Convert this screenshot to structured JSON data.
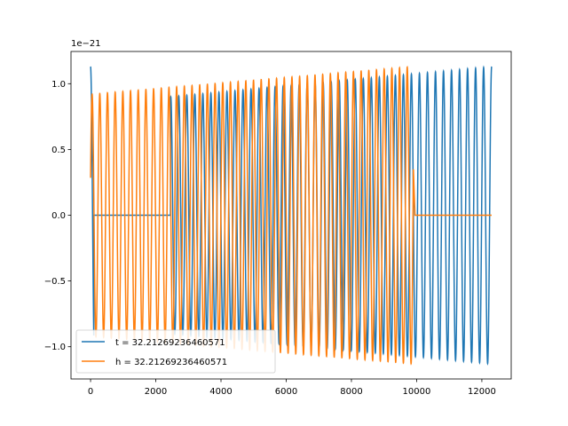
{
  "chart_data": {
    "type": "line",
    "title": "",
    "xlabel": "",
    "ylabel": "",
    "y_offset_label": "1e−21",
    "xlim": [
      -600,
      12900
    ],
    "ylim": [
      -1.245,
      1.245
    ],
    "x_ticks": [
      0,
      2000,
      4000,
      6000,
      8000,
      10000,
      12000
    ],
    "x_tick_labels": [
      "0",
      "2000",
      "4000",
      "6000",
      "8000",
      "10000",
      "12000"
    ],
    "y_ticks": [
      -1.0,
      -0.5,
      0.0,
      0.5,
      1.0
    ],
    "y_tick_labels": [
      "−1.0",
      "−0.5",
      "0.0",
      "0.5",
      "1.0"
    ],
    "grid": false,
    "legend_position": "lower-left",
    "series": [
      {
        "name": "t = 32.21269236460571",
        "color": "#1f77b4",
        "description_values": {
          "x_start": 0,
          "x_end": 12300,
          "amplitude_start": 1.13,
          "amplitude_min": 0.9,
          "amplitude_end": 1.13,
          "quiet_start": 100,
          "quiet_end": 2450,
          "cycles": 50
        }
      },
      {
        "name": "h = 32.21269236460571",
        "color": "#ff7f0e",
        "description_values": {
          "x_start": 0,
          "x_end": 12300,
          "signal_start": 0,
          "signal_end": 9900,
          "amplitude_start": 0.92,
          "amplitude_end": 1.13,
          "plateau_start": 9950,
          "plateau_value": 0.0,
          "cycles": 42
        }
      }
    ]
  }
}
